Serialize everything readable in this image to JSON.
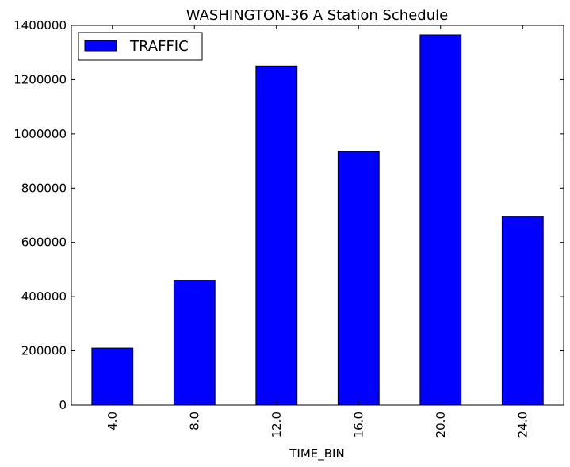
{
  "chart_data": {
    "type": "bar",
    "title": "WASHINGTON-36 A Station Schedule",
    "xlabel": "TIME_BIN",
    "ylabel": "",
    "categories": [
      "4.0",
      "8.0",
      "12.0",
      "16.0",
      "20.0",
      "24.0"
    ],
    "series": [
      {
        "name": "TRAFFIC",
        "values": [
          210000,
          460000,
          1250000,
          935000,
          1365000,
          697000
        ],
        "color": "#0000ff"
      }
    ],
    "ylim": [
      0,
      1400000
    ],
    "yticks": [
      0,
      200000,
      400000,
      600000,
      800000,
      1000000,
      1200000,
      1400000
    ],
    "ytick_labels": [
      "0",
      "200000",
      "400000",
      "600000",
      "800000",
      "1000000",
      "1200000",
      "1400000"
    ],
    "grid": false,
    "legend": {
      "position": "top-left",
      "entries": [
        "TRAFFIC"
      ]
    }
  }
}
